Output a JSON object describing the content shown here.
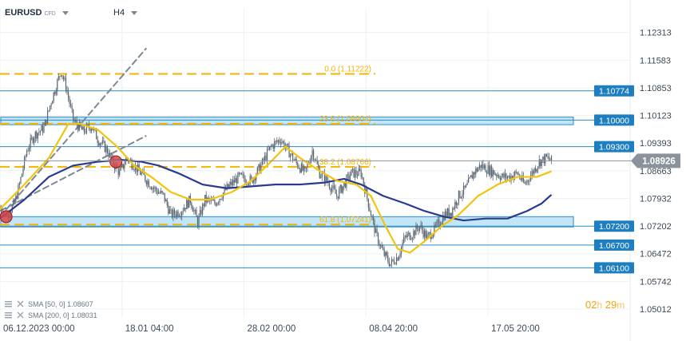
{
  "header": {
    "symbol": "EURUSD",
    "symbol_type": "CFD",
    "timeframe": "H4"
  },
  "legend": [
    {
      "label": "SMA [50, 0]",
      "value": "1.08607"
    },
    {
      "label": "SMA [200, 0]",
      "value": "1.08031"
    }
  ],
  "timer": {
    "hours": "02",
    "h": "h",
    "minutes": "29",
    "m": "m"
  },
  "colors": {
    "sma50": "#f2c40f",
    "sma200": "#2b3a8f",
    "fib": "#f5b400",
    "level": "#2a8bc6",
    "zone_fill": "#b9e1f7",
    "price_label": "#1e7fc0",
    "current_price": "#8a939c",
    "candle": "#5a6672",
    "marker": "#d7474a"
  },
  "chart_data": {
    "type": "line",
    "title": "",
    "ylim": [
      1.048,
      1.1275
    ],
    "y_ticks": [
      "1.12313",
      "1.11583",
      "1.10853",
      "1.10123",
      "1.09393",
      "1.08663",
      "1.07932",
      "1.07202",
      "1.06472",
      "1.05742",
      "1.05012"
    ],
    "x_tick_labels": [
      "06.12.2023  00:00",
      "18.01  04:00",
      "28.02  00:00",
      "08.04  20:00",
      "17.05  20:00"
    ],
    "x_range_bars": [
      0,
      470
    ],
    "x_tick_bars": [
      0,
      100,
      200,
      300,
      400
    ],
    "horizontal_levels": [
      {
        "value": 1.10774,
        "label": "1.10774"
      },
      {
        "value": 1.1,
        "label": "1.10000"
      },
      {
        "value": 1.093,
        "label": "1.09300"
      },
      {
        "value": 1.072,
        "label": "1.07200"
      },
      {
        "value": 1.067,
        "label": "1.06700"
      },
      {
        "value": 1.061,
        "label": "1.06100"
      }
    ],
    "zones": [
      {
        "from": 1.0988,
        "to": 1.1008
      },
      {
        "from": 1.0718,
        "to": 1.0745
      }
    ],
    "fibonacci": [
      {
        "value": 1.11222,
        "label": "0.0 (1.11222)"
      },
      {
        "value": 1.09904,
        "label": "23.6 (1.09904)"
      },
      {
        "value": 1.08766,
        "label": "38.2 (1.08766)"
      },
      {
        "value": 1.07241,
        "label": "61.8 (1.07241)"
      }
    ],
    "current_price": {
      "value": 1.08926,
      "label": "1.08926"
    },
    "trend_channel": [
      {
        "x": [
          0,
          120
        ],
        "y": [
          1.0745,
          1.119
        ]
      },
      {
        "x": [
          0,
          120
        ],
        "y": [
          1.076,
          1.0959
        ]
      }
    ],
    "markers": [
      {
        "x": 5,
        "y": 1.0745
      },
      {
        "x": 95,
        "y": 1.089
      }
    ],
    "price_close": [
      [
        0,
        1.077
      ],
      [
        6,
        1.075
      ],
      [
        12,
        1.078
      ],
      [
        16,
        1.083
      ],
      [
        22,
        1.092
      ],
      [
        28,
        1.096
      ],
      [
        36,
        1.098
      ],
      [
        42,
        1.105
      ],
      [
        50,
        1.113
      ],
      [
        54,
        1.109
      ],
      [
        60,
        1.1
      ],
      [
        68,
        1.097
      ],
      [
        75,
        1.0985
      ],
      [
        80,
        1.095
      ],
      [
        88,
        1.092
      ],
      [
        92,
        1.089
      ],
      [
        98,
        1.086
      ],
      [
        104,
        1.09
      ],
      [
        110,
        1.088
      ],
      [
        118,
        1.085
      ],
      [
        126,
        1.082
      ],
      [
        134,
        1.08
      ],
      [
        140,
        1.075
      ],
      [
        148,
        1.076
      ],
      [
        156,
        1.079
      ],
      [
        162,
        1.073
      ],
      [
        168,
        1.079
      ],
      [
        176,
        1.078
      ],
      [
        186,
        1.082
      ],
      [
        196,
        1.085
      ],
      [
        206,
        1.084
      ],
      [
        214,
        1.088
      ],
      [
        222,
        1.093
      ],
      [
        230,
        1.095
      ],
      [
        236,
        1.092
      ],
      [
        242,
        1.089
      ],
      [
        250,
        1.086
      ],
      [
        256,
        1.092
      ],
      [
        262,
        1.086
      ],
      [
        268,
        1.084
      ],
      [
        276,
        1.08
      ],
      [
        282,
        1.083
      ],
      [
        288,
        1.086
      ],
      [
        296,
        1.086
      ],
      [
        302,
        1.078
      ],
      [
        308,
        1.07
      ],
      [
        314,
        1.065
      ],
      [
        320,
        1.062
      ],
      [
        326,
        1.064
      ],
      [
        332,
        1.069
      ],
      [
        338,
        1.07
      ],
      [
        344,
        1.072
      ],
      [
        350,
        1.069
      ],
      [
        356,
        1.071
      ],
      [
        364,
        1.075
      ],
      [
        370,
        1.076
      ],
      [
        376,
        1.08
      ],
      [
        382,
        1.082
      ],
      [
        388,
        1.086
      ],
      [
        394,
        1.088
      ],
      [
        400,
        1.087
      ],
      [
        406,
        1.086
      ],
      [
        412,
        1.085
      ],
      [
        418,
        1.085
      ],
      [
        424,
        1.086
      ],
      [
        430,
        1.083
      ],
      [
        436,
        1.086
      ],
      [
        442,
        1.089
      ],
      [
        448,
        1.09
      ],
      [
        452,
        1.0893
      ]
    ],
    "sma50": [
      [
        0,
        1.0765
      ],
      [
        20,
        1.083
      ],
      [
        40,
        1.09
      ],
      [
        56,
        1.099
      ],
      [
        66,
        1.099
      ],
      [
        80,
        1.0975
      ],
      [
        96,
        1.093
      ],
      [
        110,
        1.088
      ],
      [
        124,
        1.085
      ],
      [
        140,
        1.081
      ],
      [
        156,
        1.079
      ],
      [
        172,
        1.079
      ],
      [
        190,
        1.081
      ],
      [
        206,
        1.084
      ],
      [
        222,
        1.089
      ],
      [
        234,
        1.093
      ],
      [
        246,
        1.09
      ],
      [
        260,
        1.087
      ],
      [
        276,
        1.084
      ],
      [
        292,
        1.083
      ],
      [
        304,
        1.08
      ],
      [
        316,
        1.072
      ],
      [
        326,
        1.066
      ],
      [
        336,
        1.065
      ],
      [
        348,
        1.068
      ],
      [
        362,
        1.072
      ],
      [
        376,
        1.075
      ],
      [
        392,
        1.08
      ],
      [
        408,
        1.083
      ],
      [
        424,
        1.085
      ],
      [
        440,
        1.085
      ],
      [
        452,
        1.0865
      ]
    ],
    "sma200": [
      [
        0,
        1.074
      ],
      [
        20,
        1.079
      ],
      [
        40,
        1.085
      ],
      [
        60,
        1.088
      ],
      [
        80,
        1.089
      ],
      [
        100,
        1.0895
      ],
      [
        116,
        1.089
      ],
      [
        130,
        1.088
      ],
      [
        146,
        1.086
      ],
      [
        166,
        1.083
      ],
      [
        186,
        1.082
      ],
      [
        206,
        1.0825
      ],
      [
        226,
        1.083
      ],
      [
        246,
        1.083
      ],
      [
        266,
        1.0835
      ],
      [
        282,
        1.0845
      ],
      [
        296,
        1.083
      ],
      [
        314,
        1.08
      ],
      [
        332,
        1.078
      ],
      [
        348,
        1.076
      ],
      [
        364,
        1.0745
      ],
      [
        380,
        1.0735
      ],
      [
        398,
        1.074
      ],
      [
        416,
        1.074
      ],
      [
        432,
        1.076
      ],
      [
        444,
        1.078
      ],
      [
        452,
        1.0803
      ]
    ]
  }
}
